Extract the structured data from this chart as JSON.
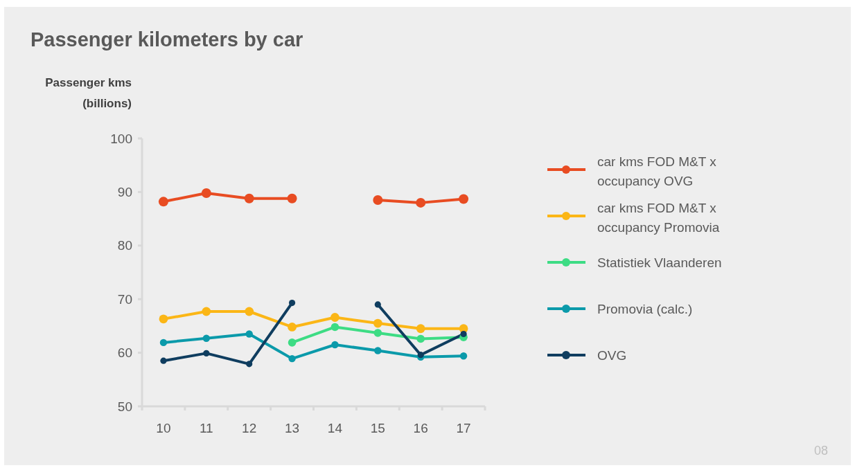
{
  "chart_data": {
    "type": "line",
    "title": "Passenger kilometers by car",
    "ylabel": "Passenger kms (billions)",
    "categories": [
      "10",
      "11",
      "12",
      "13",
      "14",
      "15",
      "16",
      "17"
    ],
    "series": [
      {
        "name": "car kms FOD M&T x occupancy OVG",
        "color": "#e84c22",
        "values": [
          88.2,
          89.8,
          88.8,
          88.8,
          null,
          88.5,
          88.0,
          88.7
        ]
      },
      {
        "name": "car kms FOD M&T x occupancy Promovia",
        "color": "#fbb616",
        "values": [
          66.3,
          67.7,
          67.7,
          64.8,
          66.6,
          65.5,
          64.5,
          64.5
        ]
      },
      {
        "name": "Statistiek Vlaanderen",
        "color": "#3ddc84",
        "values": [
          null,
          null,
          null,
          61.9,
          64.8,
          63.7,
          62.6,
          62.9
        ]
      },
      {
        "name": "Promovia (calc.)",
        "color": "#0b9aaa",
        "values": [
          61.9,
          62.7,
          63.5,
          58.9,
          61.5,
          60.4,
          59.2,
          59.4
        ]
      },
      {
        "name": "OVG",
        "color": "#0f3d5f",
        "values": [
          58.5,
          59.9,
          57.9,
          69.3,
          null,
          69.0,
          59.6,
          63.5
        ]
      }
    ],
    "ylim": [
      50,
      100
    ],
    "yticks": [
      50,
      60,
      70,
      80,
      90,
      100
    ],
    "grid": false,
    "legend": "right",
    "marker": "circle",
    "line_style": "solid",
    "annotations": [
      "08"
    ]
  }
}
